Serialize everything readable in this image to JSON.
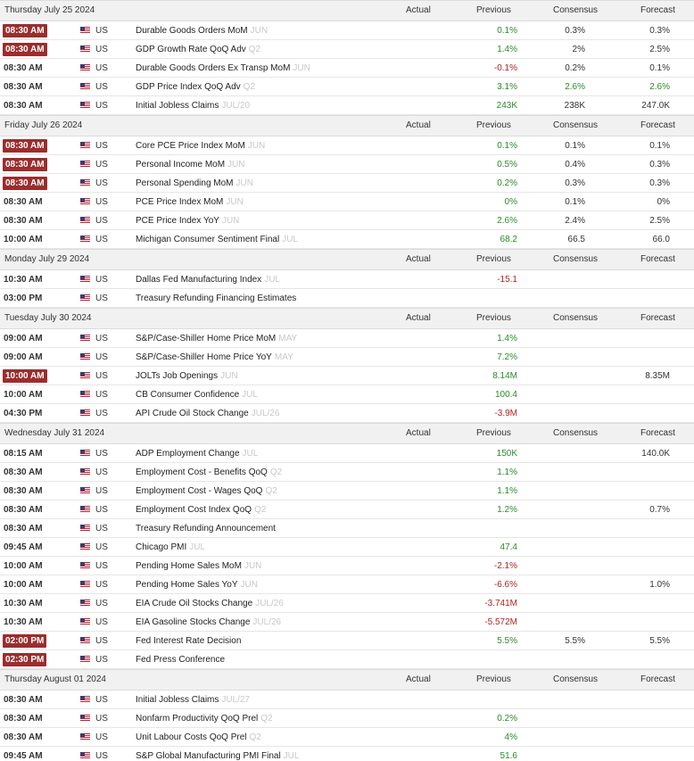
{
  "headers": {
    "actual": "Actual",
    "previous": "Previous",
    "consensus": "Consensus",
    "forecast": "Forecast"
  },
  "colors": {
    "highlight_time": "#9b2d2d",
    "positive": "#2a8a2a",
    "negative": "#b22222"
  },
  "days": [
    {
      "date": "Thursday July 25 2024",
      "show_consensus": true,
      "rows": [
        {
          "time": "08:30 AM",
          "hl": true,
          "country": "US",
          "event": "Durable Goods Orders MoM",
          "ref": "JUN",
          "actual": "",
          "previous": "0.1%",
          "previous_tone": "pos",
          "consensus": "0.3%",
          "consensus_tone": "neu",
          "forecast": "0.3%",
          "forecast_tone": "neu"
        },
        {
          "time": "08:30 AM",
          "hl": true,
          "country": "US",
          "event": "GDP Growth Rate QoQ Adv",
          "ref": "Q2",
          "actual": "",
          "previous": "1.4%",
          "previous_tone": "pos",
          "consensus": "2%",
          "consensus_tone": "neu",
          "forecast": "2.5%",
          "forecast_tone": "neu"
        },
        {
          "time": "08:30 AM",
          "hl": false,
          "country": "US",
          "event": "Durable Goods Orders Ex Transp MoM",
          "ref": "JUN",
          "actual": "",
          "previous": "-0.1%",
          "previous_tone": "neg",
          "consensus": "0.2%",
          "consensus_tone": "neu",
          "forecast": "0.1%",
          "forecast_tone": "neu"
        },
        {
          "time": "08:30 AM",
          "hl": false,
          "country": "US",
          "event": "GDP Price Index QoQ Adv",
          "ref": "Q2",
          "actual": "",
          "previous": "3.1%",
          "previous_tone": "pos",
          "consensus": "2.6%",
          "consensus_tone": "pos",
          "forecast": "2.6%",
          "forecast_tone": "pos"
        },
        {
          "time": "08:30 AM",
          "hl": false,
          "country": "US",
          "event": "Initial Jobless Claims",
          "ref": "JUL/20",
          "actual": "",
          "previous": "243K",
          "previous_tone": "pos",
          "consensus": "238K",
          "consensus_tone": "neu",
          "forecast": "247.0K",
          "forecast_tone": "neu"
        }
      ]
    },
    {
      "date": "Friday July 26 2024",
      "show_consensus": true,
      "rows": [
        {
          "time": "08:30 AM",
          "hl": true,
          "country": "US",
          "event": "Core PCE Price Index MoM",
          "ref": "JUN",
          "actual": "",
          "previous": "0.1%",
          "previous_tone": "pos",
          "consensus": "0.1%",
          "consensus_tone": "neu",
          "forecast": "0.1%",
          "forecast_tone": "neu"
        },
        {
          "time": "08:30 AM",
          "hl": true,
          "country": "US",
          "event": "Personal Income MoM",
          "ref": "JUN",
          "actual": "",
          "previous": "0.5%",
          "previous_tone": "pos",
          "consensus": "0.4%",
          "consensus_tone": "neu",
          "forecast": "0.3%",
          "forecast_tone": "neu"
        },
        {
          "time": "08:30 AM",
          "hl": true,
          "country": "US",
          "event": "Personal Spending MoM",
          "ref": "JUN",
          "actual": "",
          "previous": "0.2%",
          "previous_tone": "pos",
          "consensus": "0.3%",
          "consensus_tone": "neu",
          "forecast": "0.3%",
          "forecast_tone": "neu"
        },
        {
          "time": "08:30 AM",
          "hl": false,
          "country": "US",
          "event": "PCE Price Index MoM",
          "ref": "JUN",
          "actual": "",
          "previous": "0%",
          "previous_tone": "pos",
          "consensus": "0.1%",
          "consensus_tone": "neu",
          "forecast": "0%",
          "forecast_tone": "neu"
        },
        {
          "time": "08:30 AM",
          "hl": false,
          "country": "US",
          "event": "PCE Price Index YoY",
          "ref": "JUN",
          "actual": "",
          "previous": "2.6%",
          "previous_tone": "pos",
          "consensus": "2.4%",
          "consensus_tone": "neu",
          "forecast": "2.5%",
          "forecast_tone": "neu"
        },
        {
          "time": "10:00 AM",
          "hl": false,
          "country": "US",
          "event": "Michigan Consumer Sentiment Final",
          "ref": "JUL",
          "actual": "",
          "previous": "68.2",
          "previous_tone": "pos",
          "consensus": "66.5",
          "consensus_tone": "neu",
          "forecast": "66.0",
          "forecast_tone": "neu"
        }
      ]
    },
    {
      "date": "Monday July 29 2024",
      "show_consensus": true,
      "rows": [
        {
          "time": "10:30 AM",
          "hl": false,
          "country": "US",
          "event": "Dallas Fed Manufacturing Index",
          "ref": "JUL",
          "actual": "",
          "previous": "-15.1",
          "previous_tone": "neg",
          "consensus": "",
          "consensus_tone": "neu",
          "forecast": "",
          "forecast_tone": "neu"
        },
        {
          "time": "03:00 PM",
          "hl": false,
          "country": "US",
          "event": "Treasury Refunding Financing Estimates",
          "ref": "",
          "actual": "",
          "previous": "",
          "previous_tone": "neu",
          "consensus": "",
          "consensus_tone": "neu",
          "forecast": "",
          "forecast_tone": "neu"
        }
      ]
    },
    {
      "date": "Tuesday July 30 2024",
      "show_consensus": true,
      "rows": [
        {
          "time": "09:00 AM",
          "hl": false,
          "country": "US",
          "event": "S&P/Case-Shiller Home Price MoM",
          "ref": "MAY",
          "actual": "",
          "previous": "1.4%",
          "previous_tone": "pos",
          "consensus": "",
          "consensus_tone": "neu",
          "forecast": "",
          "forecast_tone": "neu"
        },
        {
          "time": "09:00 AM",
          "hl": false,
          "country": "US",
          "event": "S&P/Case-Shiller Home Price YoY",
          "ref": "MAY",
          "actual": "",
          "previous": "7.2%",
          "previous_tone": "pos",
          "consensus": "",
          "consensus_tone": "neu",
          "forecast": "",
          "forecast_tone": "neu"
        },
        {
          "time": "10:00 AM",
          "hl": true,
          "country": "US",
          "event": "JOLTs Job Openings",
          "ref": "JUN",
          "actual": "",
          "previous": "8.14M",
          "previous_tone": "pos",
          "consensus": "",
          "consensus_tone": "neu",
          "forecast": "8.35M",
          "forecast_tone": "neu"
        },
        {
          "time": "10:00 AM",
          "hl": false,
          "country": "US",
          "event": "CB Consumer Confidence",
          "ref": "JUL",
          "actual": "",
          "previous": "100.4",
          "previous_tone": "pos",
          "consensus": "",
          "consensus_tone": "neu",
          "forecast": "",
          "forecast_tone": "neu"
        },
        {
          "time": "04:30 PM",
          "hl": false,
          "country": "US",
          "event": "API Crude Oil Stock Change",
          "ref": "JUL/26",
          "actual": "",
          "previous": "-3.9M",
          "previous_tone": "neg",
          "consensus": "",
          "consensus_tone": "neu",
          "forecast": "",
          "forecast_tone": "neu"
        }
      ]
    },
    {
      "date": "Wednesday July 31 2024",
      "show_consensus": true,
      "rows": [
        {
          "time": "08:15 AM",
          "hl": false,
          "country": "US",
          "event": "ADP Employment Change",
          "ref": "JUL",
          "actual": "",
          "previous": "150K",
          "previous_tone": "pos",
          "consensus": "",
          "consensus_tone": "neu",
          "forecast": "140.0K",
          "forecast_tone": "neu"
        },
        {
          "time": "08:30 AM",
          "hl": false,
          "country": "US",
          "event": "Employment Cost - Benefits QoQ",
          "ref": "Q2",
          "actual": "",
          "previous": "1.1%",
          "previous_tone": "pos",
          "consensus": "",
          "consensus_tone": "neu",
          "forecast": "",
          "forecast_tone": "neu"
        },
        {
          "time": "08:30 AM",
          "hl": false,
          "country": "US",
          "event": "Employment Cost - Wages QoQ",
          "ref": "Q2",
          "actual": "",
          "previous": "1.1%",
          "previous_tone": "pos",
          "consensus": "",
          "consensus_tone": "neu",
          "forecast": "",
          "forecast_tone": "neu"
        },
        {
          "time": "08:30 AM",
          "hl": false,
          "country": "US",
          "event": "Employment Cost Index QoQ",
          "ref": "Q2",
          "actual": "",
          "previous": "1.2%",
          "previous_tone": "pos",
          "consensus": "",
          "consensus_tone": "neu",
          "forecast": "0.7%",
          "forecast_tone": "neu"
        },
        {
          "time": "08:30 AM",
          "hl": false,
          "country": "US",
          "event": "Treasury Refunding Announcement",
          "ref": "",
          "actual": "",
          "previous": "",
          "previous_tone": "neu",
          "consensus": "",
          "consensus_tone": "neu",
          "forecast": "",
          "forecast_tone": "neu"
        },
        {
          "time": "09:45 AM",
          "hl": false,
          "country": "US",
          "event": "Chicago PMI",
          "ref": "JUL",
          "actual": "",
          "previous": "47.4",
          "previous_tone": "pos",
          "consensus": "",
          "consensus_tone": "neu",
          "forecast": "",
          "forecast_tone": "neu"
        },
        {
          "time": "10:00 AM",
          "hl": false,
          "country": "US",
          "event": "Pending Home Sales MoM",
          "ref": "JUN",
          "actual": "",
          "previous": "-2.1%",
          "previous_tone": "neg",
          "consensus": "",
          "consensus_tone": "neu",
          "forecast": "",
          "forecast_tone": "neu"
        },
        {
          "time": "10:00 AM",
          "hl": false,
          "country": "US",
          "event": "Pending Home Sales YoY",
          "ref": "JUN",
          "actual": "",
          "previous": "-6.6%",
          "previous_tone": "neg",
          "consensus": "",
          "consensus_tone": "neu",
          "forecast": "1.0%",
          "forecast_tone": "neu"
        },
        {
          "time": "10:30 AM",
          "hl": false,
          "country": "US",
          "event": "EIA Crude Oil Stocks Change",
          "ref": "JUL/26",
          "actual": "",
          "previous": "-3.741M",
          "previous_tone": "neg",
          "consensus": "",
          "consensus_tone": "neu",
          "forecast": "",
          "forecast_tone": "neu"
        },
        {
          "time": "10:30 AM",
          "hl": false,
          "country": "US",
          "event": "EIA Gasoline Stocks Change",
          "ref": "JUL/26",
          "actual": "",
          "previous": "-5.572M",
          "previous_tone": "neg",
          "consensus": "",
          "consensus_tone": "neu",
          "forecast": "",
          "forecast_tone": "neu"
        },
        {
          "time": "02:00 PM",
          "hl": true,
          "country": "US",
          "event": "Fed Interest Rate Decision",
          "ref": "",
          "actual": "",
          "previous": "5.5%",
          "previous_tone": "pos",
          "consensus": "5.5%",
          "consensus_tone": "neu",
          "forecast": "5.5%",
          "forecast_tone": "neu"
        },
        {
          "time": "02:30 PM",
          "hl": true,
          "country": "US",
          "event": "Fed Press Conference",
          "ref": "",
          "actual": "",
          "previous": "",
          "previous_tone": "neu",
          "consensus": "",
          "consensus_tone": "neu",
          "forecast": "",
          "forecast_tone": "neu"
        }
      ]
    },
    {
      "date": "Thursday August 01 2024",
      "show_consensus": true,
      "rows": [
        {
          "time": "08:30 AM",
          "hl": false,
          "country": "US",
          "event": "Initial Jobless Claims",
          "ref": "JUL/27",
          "actual": "",
          "previous": "",
          "previous_tone": "neu",
          "consensus": "",
          "consensus_tone": "neu",
          "forecast": "",
          "forecast_tone": "neu"
        },
        {
          "time": "08:30 AM",
          "hl": false,
          "country": "US",
          "event": "Nonfarm Productivity QoQ Prel",
          "ref": "Q2",
          "actual": "",
          "previous": "0.2%",
          "previous_tone": "pos",
          "consensus": "",
          "consensus_tone": "neu",
          "forecast": "",
          "forecast_tone": "neu"
        },
        {
          "time": "08:30 AM",
          "hl": false,
          "country": "US",
          "event": "Unit Labour Costs QoQ Prel",
          "ref": "Q2",
          "actual": "",
          "previous": "4%",
          "previous_tone": "pos",
          "consensus": "",
          "consensus_tone": "neu",
          "forecast": "",
          "forecast_tone": "neu"
        },
        {
          "time": "09:45 AM",
          "hl": false,
          "country": "US",
          "event": "S&P Global Manufacturing PMI Final",
          "ref": "JUL",
          "actual": "",
          "previous": "51.6",
          "previous_tone": "pos",
          "consensus": "",
          "consensus_tone": "neu",
          "forecast": "",
          "forecast_tone": "neu"
        }
      ]
    }
  ]
}
